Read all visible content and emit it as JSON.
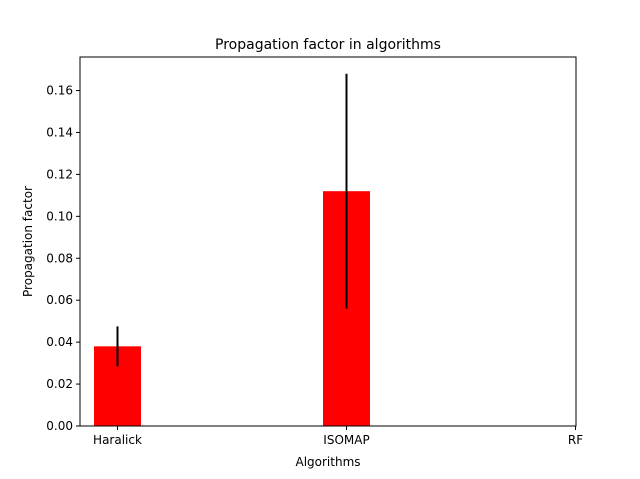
{
  "chart_data": {
    "type": "bar",
    "title": "Propagation factor in algorithms",
    "xlabel": "Algorithms",
    "ylabel": "Propagation factor",
    "categories": [
      "Haralick",
      "ISOMAP",
      "RF"
    ],
    "values": [
      0.038,
      0.112,
      0.0
    ],
    "errors": [
      0.0095,
      0.056,
      0.0
    ],
    "ylim": [
      0,
      0.176
    ],
    "yticks": [
      "0.00",
      "0.02",
      "0.04",
      "0.06",
      "0.08",
      "0.10",
      "0.12",
      "0.14",
      "0.16"
    ],
    "bar_color": "#ff0000",
    "errorbar_color": "#000000",
    "grid": false,
    "legend": "none"
  }
}
